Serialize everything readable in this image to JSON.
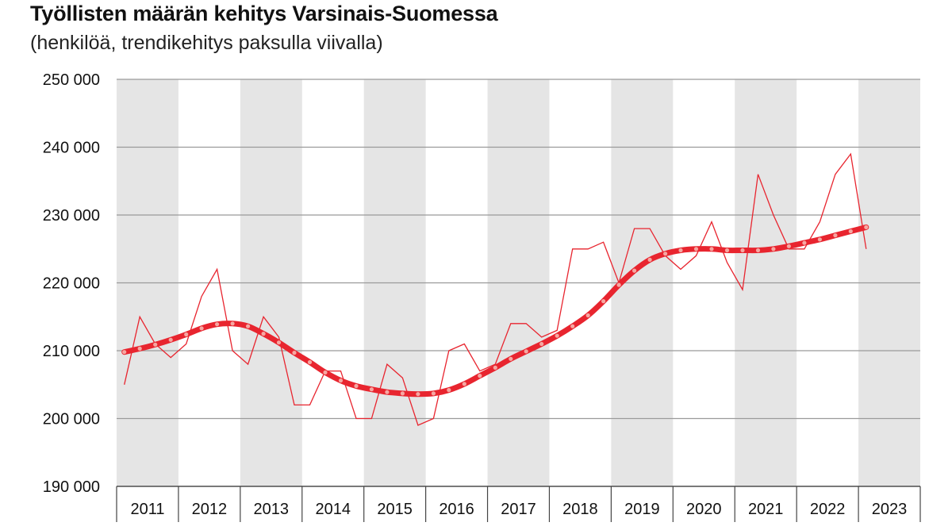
{
  "chart_data": {
    "type": "line",
    "title": "Työllisten määrän kehitys Varsinais-Suomessa",
    "subtitle": "(henkilöä, trendikehitys paksulla viivalla)",
    "xlabel": "",
    "ylabel": "",
    "ylim": [
      190000,
      250000
    ],
    "yticks": [
      190000,
      200000,
      210000,
      220000,
      230000,
      240000,
      250000
    ],
    "ytick_labels": [
      "190 000",
      "200 000",
      "210 000",
      "220 000",
      "230 000",
      "240 000",
      "250 000"
    ],
    "years": [
      "2011",
      "2012",
      "2013",
      "2014",
      "2015",
      "2016",
      "2017",
      "2018",
      "2019",
      "2020",
      "2021",
      "2022",
      "2023"
    ],
    "x_unit": "quarter",
    "x": [
      "2011Q1",
      "2011Q2",
      "2011Q3",
      "2011Q4",
      "2012Q1",
      "2012Q2",
      "2012Q3",
      "2012Q4",
      "2013Q1",
      "2013Q2",
      "2013Q3",
      "2013Q4",
      "2014Q1",
      "2014Q2",
      "2014Q3",
      "2014Q4",
      "2015Q1",
      "2015Q2",
      "2015Q3",
      "2015Q4",
      "2016Q1",
      "2016Q2",
      "2016Q3",
      "2016Q4",
      "2017Q1",
      "2017Q2",
      "2017Q3",
      "2017Q4",
      "2018Q1",
      "2018Q2",
      "2018Q3",
      "2018Q4",
      "2019Q1",
      "2019Q2",
      "2019Q3",
      "2019Q4",
      "2020Q1",
      "2020Q2",
      "2020Q3",
      "2020Q4",
      "2021Q1",
      "2021Q2",
      "2021Q3",
      "2021Q4",
      "2022Q1",
      "2022Q2",
      "2022Q3",
      "2022Q4",
      "2023Q1"
    ],
    "grid": true,
    "alternating_year_bands": true,
    "series": [
      {
        "color": "#e8252f",
        "style": "thin",
        "values": [
          205000,
          215000,
          211000,
          209000,
          211000,
          218000,
          222000,
          210000,
          208000,
          215000,
          212000,
          202000,
          202000,
          207000,
          207000,
          200000,
          200000,
          208000,
          206000,
          199000,
          200000,
          210000,
          211000,
          207000,
          208000,
          214000,
          214000,
          212000,
          213000,
          225000,
          225000,
          226000,
          220000,
          228000,
          228000,
          224000,
          222000,
          224000,
          229000,
          223000,
          219000,
          236000,
          230000,
          225000,
          225000,
          229000,
          236000,
          239000,
          225000
        ]
      },
      {
        "color": "#e8252f",
        "style": "thick-trend",
        "values": [
          209800,
          210300,
          210900,
          211600,
          212400,
          213300,
          213900,
          214000,
          213600,
          212500,
          211200,
          209700,
          208300,
          206800,
          205600,
          204800,
          204300,
          203900,
          203700,
          203600,
          203700,
          204200,
          205100,
          206300,
          207500,
          208800,
          209900,
          211000,
          212200,
          213600,
          215200,
          217300,
          219700,
          221800,
          223400,
          224300,
          224800,
          225000,
          225000,
          224800,
          224800,
          224800,
          225000,
          225400,
          225900,
          226400,
          227000,
          227600,
          228200
        ]
      }
    ]
  }
}
